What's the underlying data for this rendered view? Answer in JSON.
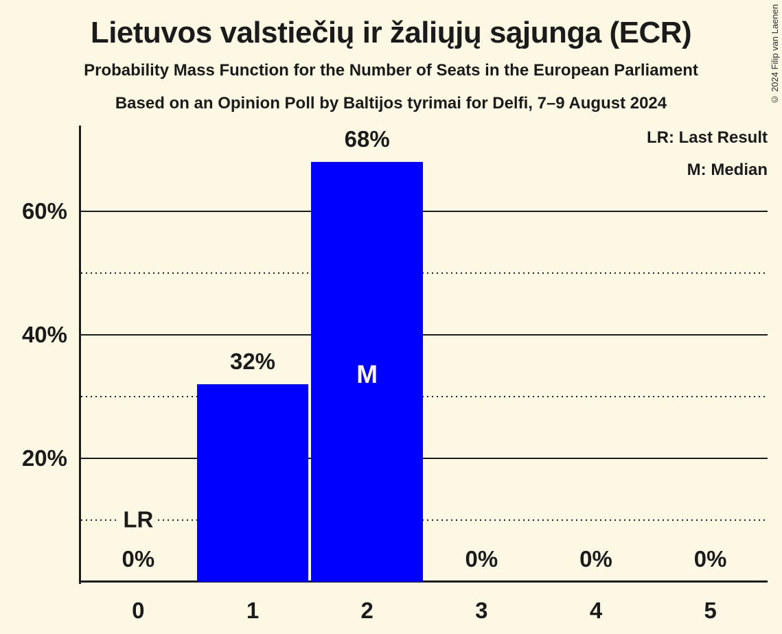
{
  "title": "Lietuvos valstiečių ir žaliųjų sąjunga (ECR)",
  "subtitles": [
    "Probability Mass Function for the Number of Seats in the European Parliament",
    "Based on an Opinion Poll by Baltijos tyrimai for Delfi, 7–9 August 2024"
  ],
  "copyright": "© 2024 Filip van Laenen",
  "legend": {
    "last_result": "LR: Last Result",
    "median": "M: Median"
  },
  "colors": {
    "background": "#FCF8E3",
    "bar": "#0000FF",
    "text": "#1B1B1B",
    "median_text": "#FCF8E3"
  },
  "chart_data": {
    "type": "bar",
    "title": "Lietuvos valstiečių ir žaliųjų sąjunga (ECR)",
    "categories": [
      "0",
      "1",
      "2",
      "3",
      "4",
      "5"
    ],
    "values": [
      0,
      32,
      68,
      0,
      0,
      0
    ],
    "value_labels": [
      "0%",
      "32%",
      "68%",
      "0%",
      "0%",
      "0%"
    ],
    "unit": "percent",
    "ylim": [
      0,
      74
    ],
    "yticks": [
      {
        "value": 20,
        "label": "20%"
      },
      {
        "value": 40,
        "label": "40%"
      },
      {
        "value": 60,
        "label": "60%"
      }
    ],
    "gridlines": {
      "solid": [
        20,
        40,
        60
      ],
      "dotted": [
        10,
        30,
        50
      ]
    },
    "median": {
      "label": "M",
      "seat_index": 2
    },
    "last_result": {
      "label": "LR",
      "seat_index": 0,
      "at_percent": 10
    },
    "legend_position": "top-right",
    "grid": "horizontal"
  }
}
